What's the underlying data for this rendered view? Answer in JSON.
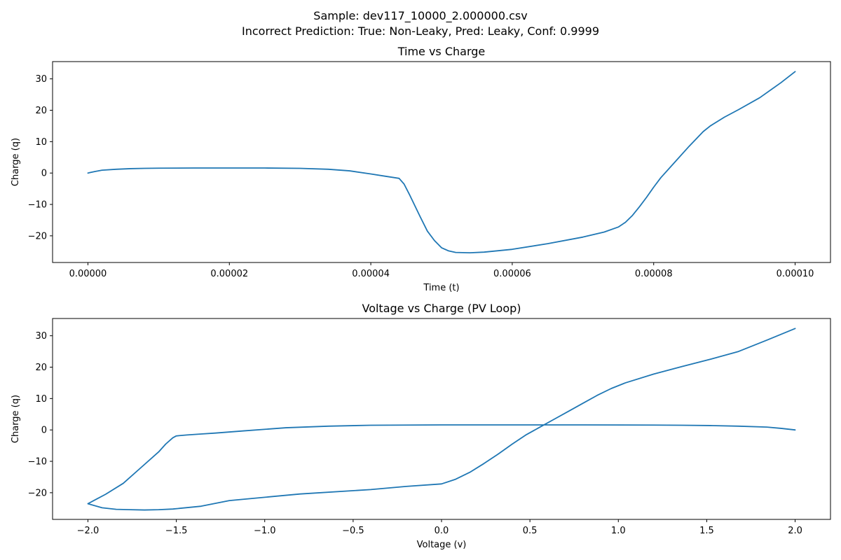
{
  "figure": {
    "suptitle_line1": "Sample: dev117_10000_2.000000.csv",
    "suptitle_line2": "Incorrect Prediction: True: Non-Leaky, Pred: Leaky, Conf: 0.9999"
  },
  "colors": {
    "line": "#1f77b4",
    "axes": "#000000"
  },
  "chart_data": [
    {
      "type": "line",
      "title": "Time vs Charge",
      "xlabel": "Time (t)",
      "ylabel": "Charge (q)",
      "xlim": [
        -5e-06,
        0.000105
      ],
      "ylim": [
        -28.5,
        35.5
      ],
      "xticks": [
        0,
        2e-05,
        4e-05,
        6e-05,
        8e-05,
        0.0001
      ],
      "xtick_labels": [
        "0.00000",
        "0.00002",
        "0.00004",
        "0.00006",
        "0.00008",
        "0.00010"
      ],
      "yticks": [
        -20,
        -10,
        0,
        10,
        20,
        30
      ],
      "ytick_labels": [
        "−20",
        "−10",
        "0",
        "10",
        "20",
        "30"
      ],
      "grid": false,
      "series": [
        {
          "x": [
            0,
            1e-06,
            2e-06,
            4e-06,
            6e-06,
            8e-06,
            1e-05,
            1.5e-05,
            2e-05,
            2.5e-05,
            3e-05,
            3.4e-05,
            3.7e-05,
            4e-05,
            4.2e-05,
            4.4e-05,
            4.47e-05,
            4.55e-05,
            4.7e-05,
            4.8e-05,
            4.9e-05,
            5e-05,
            5.1e-05,
            5.2e-05,
            5.4e-05,
            5.6e-05,
            6e-05,
            6.5e-05,
            7e-05,
            7.3e-05,
            7.5e-05,
            7.6e-05,
            7.7e-05,
            7.8e-05,
            7.9e-05,
            8e-05,
            8.1e-05,
            8.3e-05,
            8.5e-05,
            8.7e-05,
            8.8e-05,
            9e-05,
            9.2e-05,
            9.5e-05,
            9.8e-05,
            0.0001
          ],
          "y": [
            0,
            0.5,
            0.9,
            1.2,
            1.4,
            1.5,
            1.55,
            1.6,
            1.6,
            1.6,
            1.5,
            1.2,
            0.7,
            -0.3,
            -1.0,
            -1.7,
            -3.5,
            -7,
            -14,
            -18.5,
            -21.5,
            -23.8,
            -24.8,
            -25.3,
            -25.4,
            -25.2,
            -24.3,
            -22.5,
            -20.4,
            -18.8,
            -17.2,
            -15.7,
            -13.5,
            -10.7,
            -7.7,
            -4.5,
            -1.5,
            3.5,
            8.5,
            13.2,
            15.0,
            17.8,
            20.2,
            24.0,
            28.8,
            32.3
          ]
        }
      ]
    },
    {
      "type": "line",
      "title": "Voltage vs Charge (PV Loop)",
      "xlabel": "Voltage (v)",
      "ylabel": "Charge (q)",
      "xlim": [
        -2.2,
        2.2
      ],
      "ylim": [
        -28.5,
        35.5
      ],
      "xticks": [
        -2.0,
        -1.5,
        -1.0,
        -0.5,
        0.0,
        0.5,
        1.0,
        1.5,
        2.0
      ],
      "xtick_labels": [
        "−2.0",
        "−1.5",
        "−1.0",
        "−0.5",
        "0.0",
        "0.5",
        "1.0",
        "1.5",
        "2.0"
      ],
      "yticks": [
        -20,
        -10,
        0,
        10,
        20,
        30
      ],
      "ytick_labels": [
        "−20",
        "−10",
        "0",
        "10",
        "20",
        "30"
      ],
      "grid": false,
      "series": [
        {
          "x": [
            2.0,
            1.92,
            1.84,
            1.68,
            1.52,
            1.36,
            1.2,
            0.8,
            0.4,
            0.0,
            -0.4,
            -0.64,
            -0.88,
            -1.12,
            -1.28,
            -1.36,
            -1.44,
            -1.48,
            -1.5,
            -1.52,
            -1.56,
            -1.6,
            -1.7,
            -1.8,
            -1.9,
            -1.95,
            -2.0,
            -1.92,
            -1.84,
            -1.76,
            -1.68,
            -1.6,
            -1.52,
            -1.36,
            -1.2,
            -0.8,
            -0.4,
            -0.2,
            0.0,
            0.08,
            0.16,
            0.24,
            0.32,
            0.4,
            0.48,
            0.56,
            0.64,
            0.72,
            0.8,
            0.88,
            0.96,
            1.04,
            1.2,
            1.36,
            1.52,
            1.68,
            1.84,
            2.0
          ],
          "y": [
            0,
            0.5,
            0.9,
            1.2,
            1.4,
            1.5,
            1.55,
            1.6,
            1.6,
            1.6,
            1.5,
            1.2,
            0.7,
            -0.3,
            -1.0,
            -1.3,
            -1.6,
            -1.8,
            -1.9,
            -2.5,
            -4.5,
            -7.0,
            -12.0,
            -17.0,
            -20.5,
            -22.0,
            -23.5,
            -24.8,
            -25.3,
            -25.4,
            -25.5,
            -25.4,
            -25.2,
            -24.3,
            -22.5,
            -20.4,
            -19.0,
            -18.0,
            -17.2,
            -15.7,
            -13.5,
            -10.7,
            -7.7,
            -4.5,
            -1.5,
            1.0,
            3.5,
            6.0,
            8.5,
            11.0,
            13.2,
            15.0,
            17.8,
            20.2,
            22.5,
            25.0,
            28.6,
            32.3
          ]
        }
      ]
    }
  ]
}
